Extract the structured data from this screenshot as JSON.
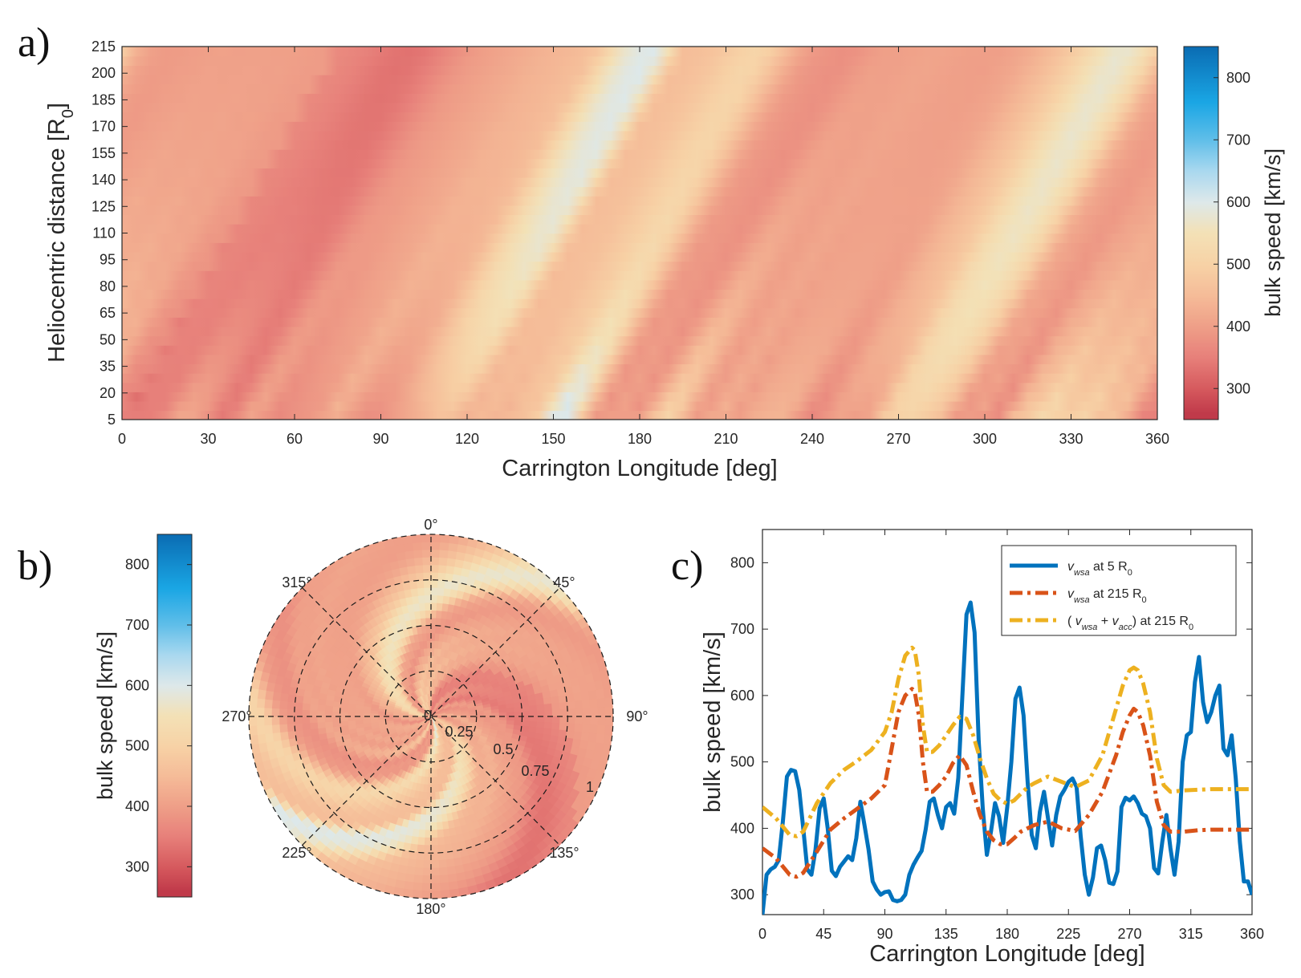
{
  "panel_labels": [
    "a)",
    "b)",
    "c)"
  ],
  "colors": {
    "stops": [
      [
        260,
        "#c03a4a"
      ],
      [
        300,
        "#d65a5e"
      ],
      [
        350,
        "#e7807a"
      ],
      [
        400,
        "#ef9f88"
      ],
      [
        450,
        "#f5bc98"
      ],
      [
        500,
        "#f7d2a6"
      ],
      [
        550,
        "#f3e1b6"
      ],
      [
        600,
        "#dde8ea"
      ],
      [
        650,
        "#a9d8ef"
      ],
      [
        700,
        "#5fbee9"
      ],
      [
        760,
        "#1aa6e4"
      ],
      [
        850,
        "#0a6cb3"
      ]
    ],
    "series": [
      "#0072bd",
      "#d95319",
      "#edb120"
    ]
  },
  "chart_data": [
    {
      "type": "heatmap",
      "panel": "a)",
      "xlabel": "Carrington Longitude [deg]",
      "ylabel_main": "Heliocentric distance [R",
      "ylabel_sub": "0",
      "ylabel_end": "]",
      "xlim": [
        0,
        360
      ],
      "ylim": [
        5,
        215
      ],
      "xticks": [
        "0",
        "30",
        "60",
        "90",
        "120",
        "150",
        "180",
        "210",
        "240",
        "270",
        "300",
        "330",
        "360"
      ],
      "yticks": [
        "5",
        "20",
        "35",
        "50",
        "65",
        "80",
        "95",
        "110",
        "125",
        "140",
        "155",
        "170",
        "185",
        "200",
        "215"
      ],
      "colorbar": {
        "label": "bulk speed [km/s]",
        "range": [
          250,
          850
        ],
        "ticks": [
          "300",
          "400",
          "500",
          "600",
          "700",
          "800"
        ]
      }
    },
    {
      "type": "polar-heatmap",
      "panel": "b)",
      "angle_labels": [
        "0°",
        "45°",
        "90°",
        "135°",
        "180°",
        "225°",
        "270°",
        "315°"
      ],
      "radial_labels": [
        "0",
        "0.25",
        "0.5",
        "0.75",
        "1"
      ],
      "radial_range": [
        0,
        1
      ],
      "colorbar": {
        "label": "bulk speed [km/s]",
        "range": [
          250,
          850
        ],
        "ticks": [
          "300",
          "400",
          "500",
          "600",
          "700",
          "800"
        ]
      }
    },
    {
      "type": "line",
      "panel": "c)",
      "xlabel": "Carrington Longitude [deg]",
      "ylabel": "bulk speed [km/s]",
      "xlim": [
        0,
        360
      ],
      "ylim": [
        270,
        850
      ],
      "xticks": [
        "0",
        "45",
        "90",
        "135",
        "180",
        "225",
        "270",
        "315",
        "360"
      ],
      "yticks": [
        "300",
        "400",
        "500",
        "600",
        "700",
        "800"
      ],
      "legend_position": "top-right",
      "series": [
        {
          "name": "v_wsa at 5 R0",
          "legend": {
            "pre": "",
            "v1": "v",
            "s1": "wsa",
            "mid": "",
            "v2": "",
            "s2": "",
            "post": " at 5 R",
            "s3": "0",
            "end": ""
          },
          "style": "solid",
          "x": [
            0,
            3,
            6,
            9,
            12,
            15,
            18,
            21,
            24,
            27,
            30,
            33,
            36,
            39,
            42,
            45,
            48,
            51,
            54,
            57,
            60,
            63,
            66,
            69,
            72,
            75,
            78,
            81,
            84,
            87,
            90,
            93,
            96,
            99,
            102,
            105,
            108,
            111,
            114,
            117,
            120,
            123,
            126,
            129,
            132,
            135,
            138,
            141,
            144,
            147,
            150,
            153,
            156,
            159,
            162,
            165,
            168,
            171,
            174,
            177,
            180,
            183,
            186,
            189,
            192,
            195,
            198,
            201,
            204,
            207,
            210,
            213,
            216,
            219,
            222,
            225,
            228,
            231,
            234,
            237,
            240,
            243,
            246,
            249,
            252,
            255,
            258,
            261,
            264,
            267,
            270,
            273,
            276,
            279,
            282,
            285,
            288,
            291,
            294,
            297,
            300,
            303,
            306,
            309,
            312,
            315,
            318,
            321,
            324,
            327,
            330,
            333,
            336,
            339,
            342,
            345,
            348,
            351,
            354,
            357,
            360
          ],
          "values": [
            270,
            330,
            338,
            342,
            352,
            410,
            478,
            488,
            486,
            458,
            400,
            338,
            330,
            368,
            430,
            445,
            400,
            336,
            328,
            342,
            350,
            358,
            352,
            385,
            440,
            405,
            368,
            320,
            308,
            300,
            304,
            305,
            292,
            290,
            292,
            300,
            330,
            345,
            356,
            366,
            398,
            440,
            445,
            420,
            400,
            432,
            438,
            422,
            476,
            600,
            722,
            740,
            695,
            532,
            430,
            360,
            395,
            438,
            418,
            378,
            432,
            500,
            595,
            612,
            570,
            470,
            390,
            370,
            425,
            455,
            415,
            374,
            420,
            448,
            458,
            470,
            475,
            462,
            388,
            330,
            300,
            326,
            370,
            374,
            352,
            318,
            316,
            335,
            432,
            446,
            442,
            448,
            438,
            422,
            418,
            400,
            340,
            332,
            380,
            420,
            370,
            330,
            380,
            500,
            540,
            545,
            620,
            658,
            590,
            560,
            575,
            600,
            615,
            520,
            510,
            540,
            475,
            380,
            320,
            320,
            300
          ]
        },
        {
          "name": "v_wsa at 215 R0",
          "legend": {
            "pre": "",
            "v1": "v",
            "s1": "wsa",
            "mid": "",
            "v2": "",
            "s2": "",
            "post": " at 215 R",
            "s3": "0",
            "end": ""
          },
          "style": "dashdot",
          "x": [
            0,
            10,
            20,
            25,
            30,
            40,
            50,
            60,
            70,
            80,
            90,
            95,
            100,
            105,
            110,
            112,
            115,
            118,
            121,
            125,
            130,
            135,
            140,
            145,
            150,
            155,
            160,
            165,
            170,
            175,
            180,
            185,
            190,
            195,
            200,
            210,
            220,
            230,
            240,
            250,
            260,
            265,
            270,
            273,
            276,
            280,
            285,
            290,
            295,
            300,
            310,
            320,
            330,
            340,
            350,
            360
          ],
          "values": [
            370,
            355,
            330,
            327,
            333,
            365,
            398,
            415,
            430,
            445,
            465,
            520,
            575,
            600,
            610,
            605,
            570,
            500,
            455,
            455,
            465,
            478,
            498,
            510,
            495,
            455,
            420,
            395,
            382,
            376,
            376,
            385,
            395,
            400,
            405,
            410,
            400,
            396,
            420,
            455,
            510,
            545,
            570,
            580,
            575,
            555,
            510,
            440,
            405,
            395,
            395,
            397,
            398,
            398,
            398,
            398
          ]
        },
        {
          "name": "(v_wsa + v_acc) at 215 R0",
          "legend": {
            "pre": "( ",
            "v1": "v",
            "s1": "wsa",
            "mid": " + ",
            "v2": "v",
            "s2": "acc",
            "post": ") at 215 R",
            "s3": "0",
            "end": ""
          },
          "style": "dashdot",
          "x": [
            0,
            10,
            20,
            25,
            30,
            40,
            50,
            60,
            70,
            80,
            90,
            95,
            100,
            105,
            110,
            112,
            115,
            118,
            121,
            125,
            130,
            135,
            140,
            145,
            150,
            155,
            160,
            165,
            170,
            175,
            180,
            185,
            190,
            195,
            200,
            210,
            220,
            230,
            240,
            250,
            260,
            265,
            270,
            273,
            276,
            280,
            285,
            290,
            295,
            300,
            310,
            320,
            330,
            340,
            350,
            360
          ],
          "values": [
            432,
            415,
            390,
            388,
            395,
            438,
            468,
            488,
            502,
            518,
            545,
            575,
            625,
            660,
            672,
            668,
            630,
            555,
            515,
            515,
            525,
            540,
            555,
            568,
            565,
            540,
            505,
            475,
            452,
            442,
            437,
            442,
            452,
            462,
            468,
            478,
            470,
            462,
            472,
            510,
            580,
            615,
            638,
            642,
            638,
            618,
            575,
            505,
            465,
            455,
            457,
            458,
            459,
            459,
            459,
            459
          ]
        }
      ]
    }
  ]
}
